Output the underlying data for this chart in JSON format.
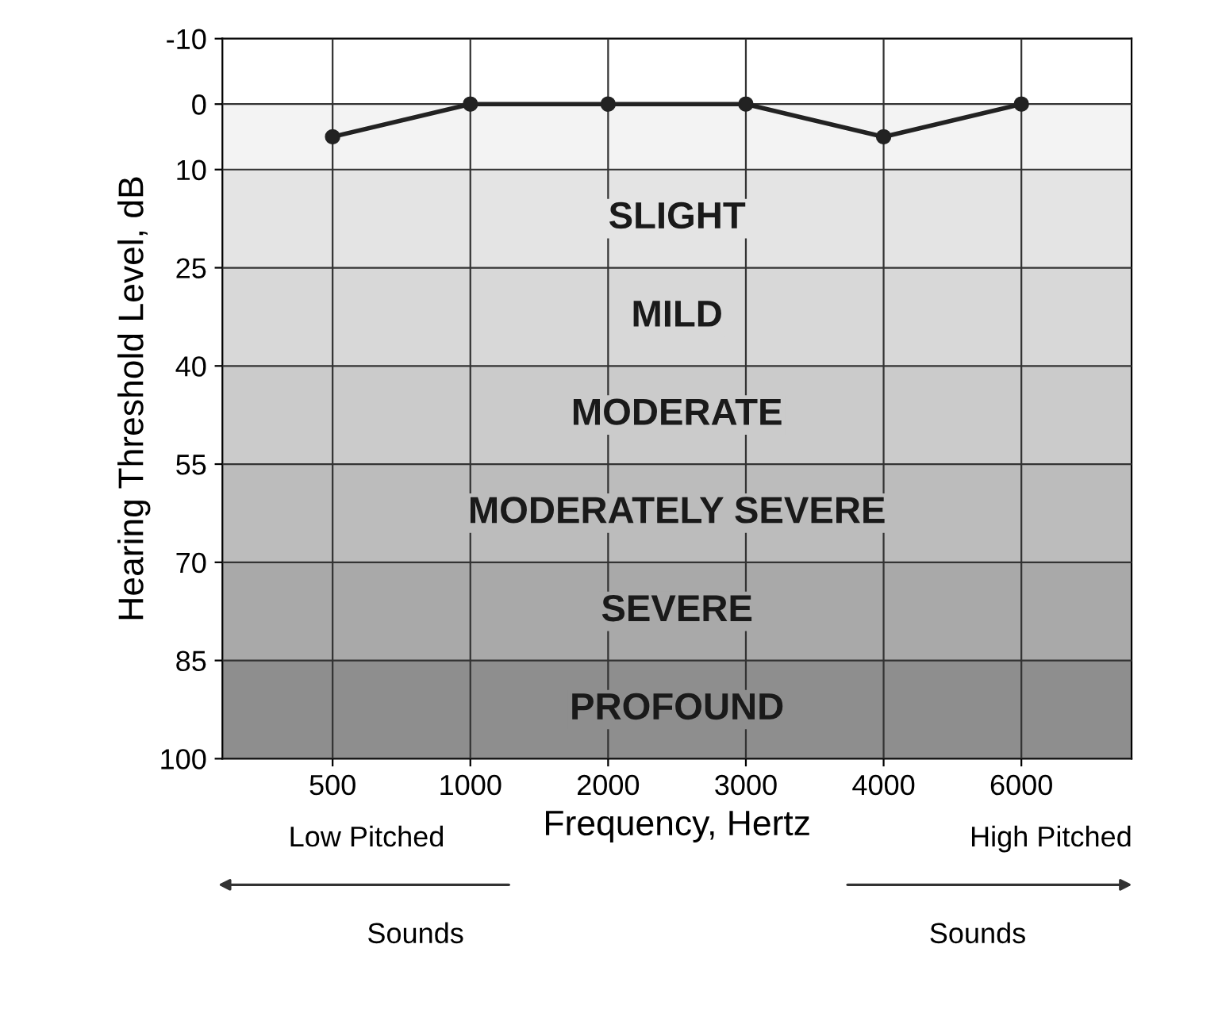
{
  "chart_data": {
    "type": "line",
    "xlabel": "Frequency, Hertz",
    "ylabel": "Hearing Threshold Level, dB",
    "categories": [
      "500",
      "1000",
      "2000",
      "3000",
      "4000",
      "6000"
    ],
    "series": [
      {
        "color": "#222222",
        "values": [
          5,
          0,
          0,
          0,
          5,
          0
        ]
      }
    ],
    "marker": "circle",
    "line_style": "solid",
    "ylim": [
      100,
      -10
    ],
    "yticks": [
      -10,
      0,
      10,
      25,
      40,
      55,
      70,
      85,
      100
    ],
    "grid": true,
    "bands": [
      {
        "axis": "y",
        "from": 0,
        "to": 10,
        "label": null,
        "color": "#f3f3f3"
      },
      {
        "axis": "y",
        "from": 10,
        "to": 25,
        "label": "SLIGHT",
        "color": "#e4e4e4"
      },
      {
        "axis": "y",
        "from": 25,
        "to": 40,
        "label": "MILD",
        "color": "#d8d8d8"
      },
      {
        "axis": "y",
        "from": 40,
        "to": 55,
        "label": "MODERATE",
        "color": "#cbcbcb"
      },
      {
        "axis": "y",
        "from": 55,
        "to": 70,
        "label": "MODERATELY SEVERE",
        "color": "#bcbcbc"
      },
      {
        "axis": "y",
        "from": 70,
        "to": 85,
        "label": "SEVERE",
        "color": "#a9a9a9"
      },
      {
        "axis": "y",
        "from": 85,
        "to": 100,
        "label": "PROFOUND",
        "color": "#8e8e8e"
      }
    ],
    "annotations": [
      "Low Pitched",
      "Sounds",
      "High Pitched",
      "Sounds"
    ]
  }
}
